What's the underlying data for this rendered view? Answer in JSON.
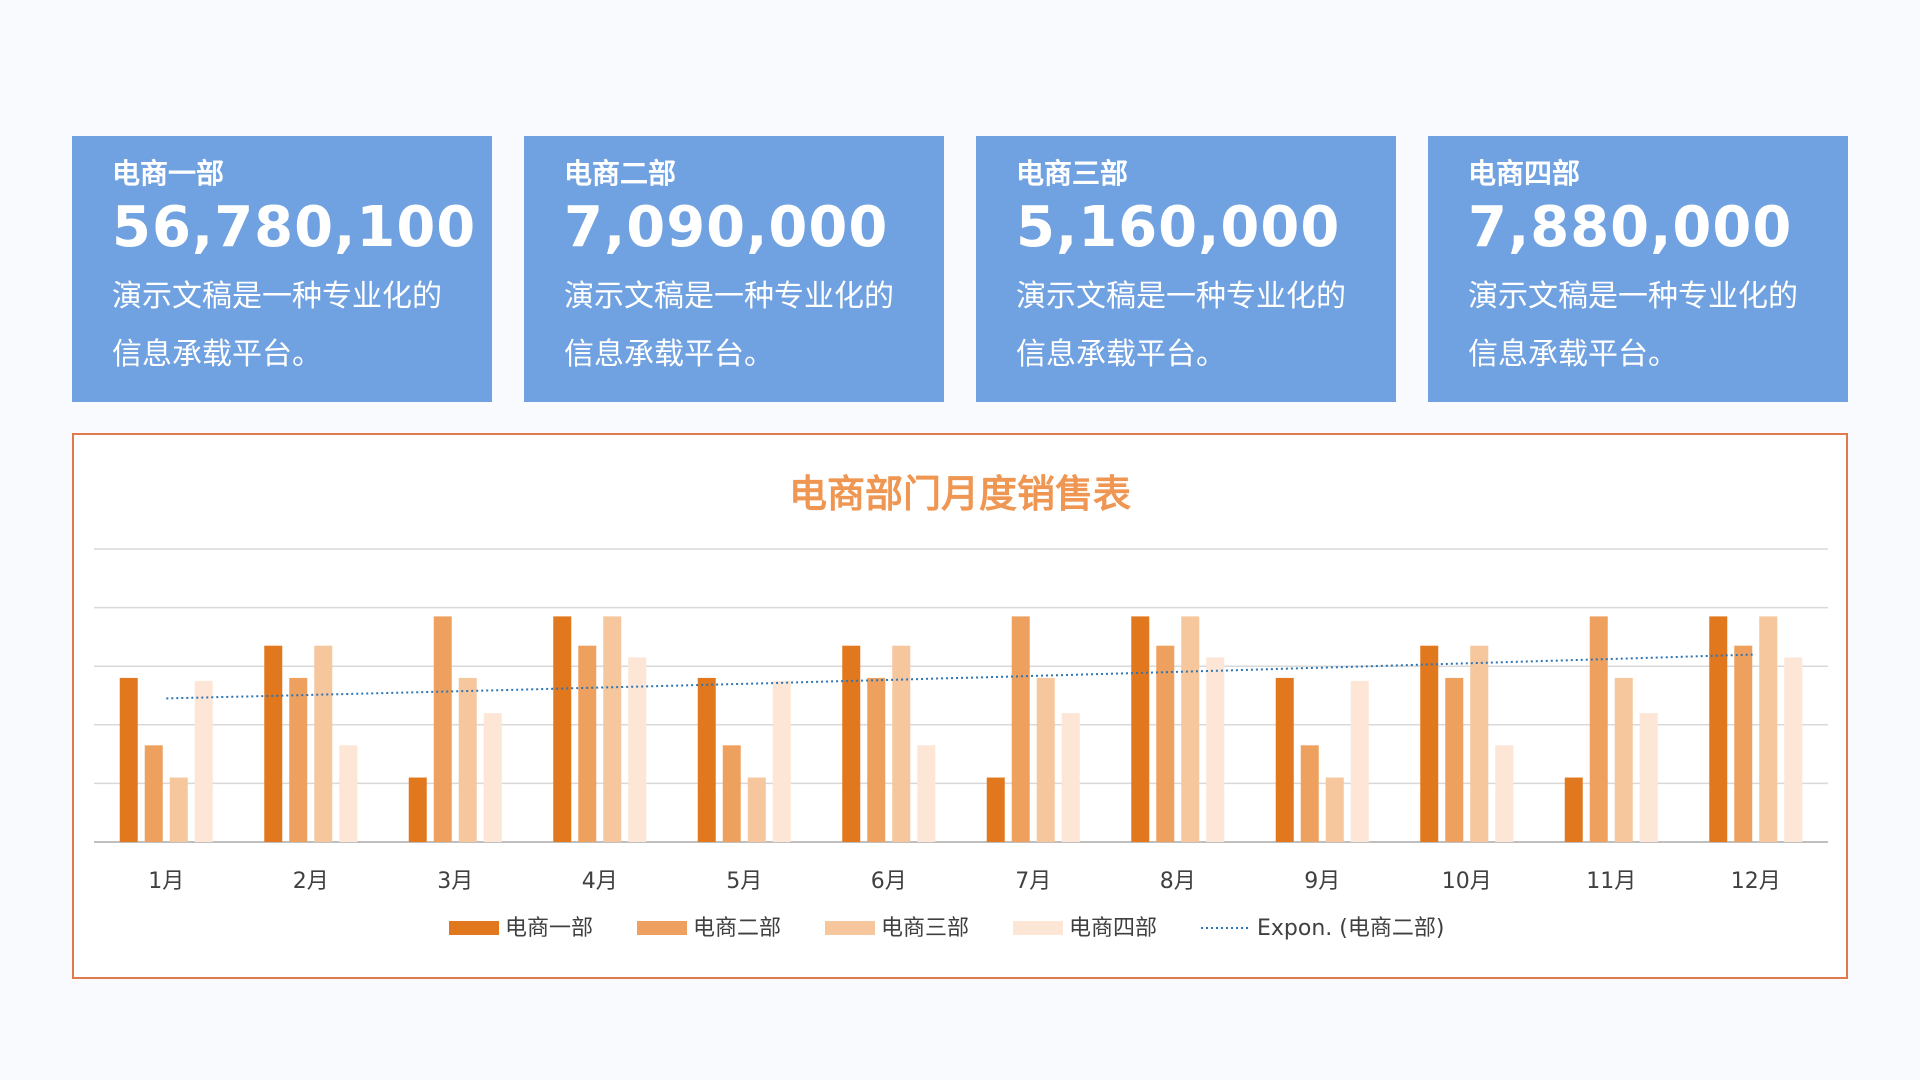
{
  "cards": [
    {
      "title": "电商一部",
      "value": "56,780,100",
      "desc": "演示文稿是一种专业化的信息承载平台。"
    },
    {
      "title": "电商二部",
      "value": "7,090,000",
      "desc": "演示文稿是一种专业化的信息承载平台。"
    },
    {
      "title": "电商三部",
      "value": "5,160,000",
      "desc": "演示文稿是一种专业化的信息承载平台。"
    },
    {
      "title": "电商四部",
      "value": "7,880,000",
      "desc": "演示文稿是一种专业化的信息承载平台。"
    }
  ],
  "chart_data": {
    "type": "bar",
    "title": "电商部门月度销售表",
    "categories": [
      "1月",
      "2月",
      "3月",
      "4月",
      "5月",
      "6月",
      "7月",
      "8月",
      "9月",
      "10月",
      "11月",
      "12月"
    ],
    "ylim": [
      0,
      5
    ],
    "grid": true,
    "legend_position": "bottom",
    "series": [
      {
        "name": "电商一部",
        "color": "#e2781d",
        "values": [
          2.8,
          3.35,
          1.1,
          3.85,
          2.8,
          3.35,
          1.1,
          3.85,
          2.8,
          3.35,
          1.1,
          3.85
        ]
      },
      {
        "name": "电商二部",
        "color": "#eea05e",
        "values": [
          1.65,
          2.8,
          3.85,
          3.35,
          1.65,
          2.8,
          3.85,
          3.35,
          1.65,
          2.8,
          3.85,
          3.35
        ]
      },
      {
        "name": "电商三部",
        "color": "#f6c69d",
        "values": [
          1.1,
          3.35,
          2.8,
          3.85,
          1.1,
          3.35,
          2.8,
          3.85,
          1.1,
          3.35,
          2.8,
          3.85
        ]
      },
      {
        "name": "电商四部",
        "color": "#fde6d6",
        "values": [
          2.75,
          1.65,
          2.2,
          3.15,
          2.75,
          1.65,
          2.2,
          3.15,
          2.75,
          1.65,
          2.2,
          3.15
        ]
      }
    ],
    "trendline": {
      "name": "Expon. (电商二部)",
      "color": "#2e75b6",
      "start": 2.45,
      "end": 3.2
    }
  }
}
